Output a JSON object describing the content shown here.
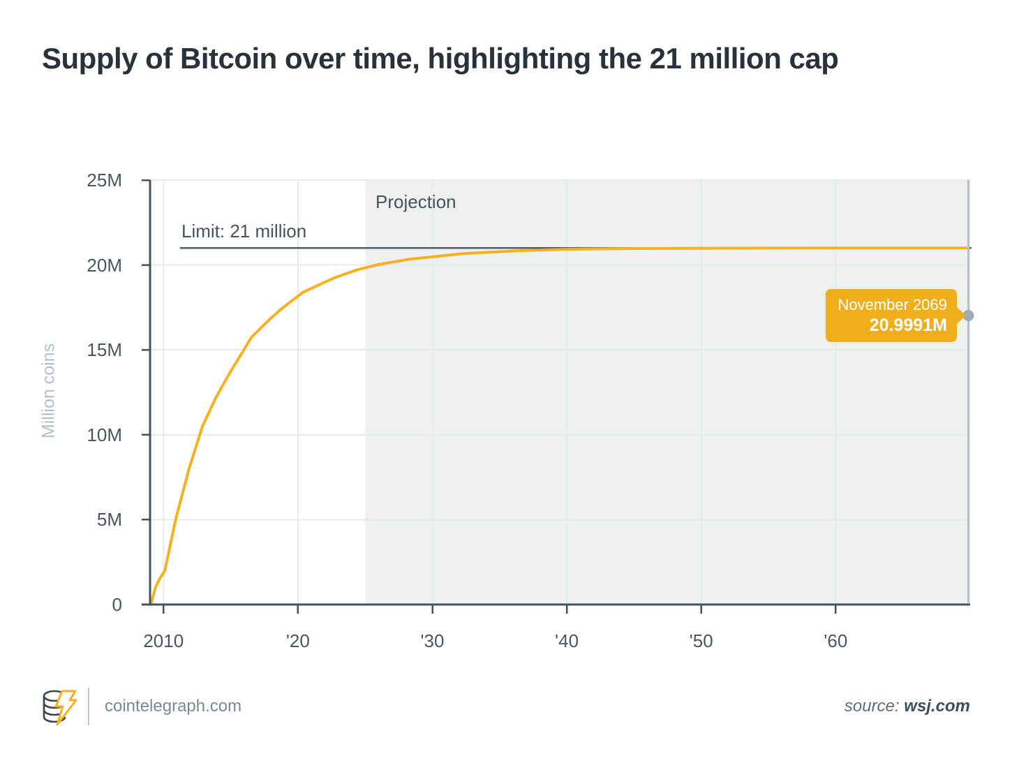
{
  "title": "Supply of Bitcoin over time, highlighting the 21 million cap",
  "chart_data": {
    "type": "line",
    "title": "Supply of Bitcoin over time, highlighting the 21 million cap",
    "xlabel": "",
    "ylabel": "Million coins",
    "xlim": [
      2009,
      2070
    ],
    "ylim": [
      0,
      25
    ],
    "grid": true,
    "y_ticks": [
      {
        "value": 0,
        "label": "0"
      },
      {
        "value": 5,
        "label": "5M"
      },
      {
        "value": 10,
        "label": "10M"
      },
      {
        "value": 15,
        "label": "15M"
      },
      {
        "value": 20,
        "label": "20M"
      },
      {
        "value": 25,
        "label": "25M"
      }
    ],
    "x_ticks": [
      {
        "value": 2010,
        "label": "2010"
      },
      {
        "value": 2020,
        "label": "'20"
      },
      {
        "value": 2030,
        "label": "'30"
      },
      {
        "value": 2040,
        "label": "'40"
      },
      {
        "value": 2050,
        "label": "'50"
      },
      {
        "value": 2060,
        "label": "'60"
      }
    ],
    "projection": {
      "label": "Projection",
      "start": 2025,
      "end": 2070
    },
    "limit_line": {
      "label": "Limit: 21 million",
      "value": 21
    },
    "series": [
      {
        "name": "Bitcoin supply (million coins)",
        "color": "#F5B120",
        "points": [
          [
            2009.05,
            0
          ],
          [
            2009.4,
            1.0
          ],
          [
            2009.7,
            1.5
          ],
          [
            2010.1,
            2.0
          ],
          [
            2010.9,
            5.0
          ],
          [
            2011.9,
            8.0
          ],
          [
            2012.9,
            10.5
          ],
          [
            2013.9,
            12.2
          ],
          [
            2014.9,
            13.6
          ],
          [
            2016.55,
            15.75
          ],
          [
            2017.9,
            16.8
          ],
          [
            2018.9,
            17.5
          ],
          [
            2020.35,
            18.38
          ],
          [
            2021.9,
            18.95
          ],
          [
            2022.9,
            19.3
          ],
          [
            2024.3,
            19.69
          ],
          [
            2026.0,
            20.03
          ],
          [
            2028.3,
            20.34
          ],
          [
            2030.0,
            20.48
          ],
          [
            2032.3,
            20.67
          ],
          [
            2036.3,
            20.84
          ],
          [
            2040.3,
            20.93
          ],
          [
            2044.3,
            20.965
          ],
          [
            2048.3,
            20.982
          ],
          [
            2052.3,
            20.991
          ],
          [
            2056.3,
            20.9955
          ],
          [
            2060.3,
            20.9977
          ],
          [
            2064.3,
            20.9988
          ],
          [
            2069.87,
            20.9991
          ]
        ]
      }
    ],
    "tooltip": {
      "title": "November 2069",
      "value": "20.9991M",
      "x": 2069.87
    }
  },
  "footer": {
    "brand": "cointelegraph.com",
    "source_prefix": "source:",
    "source": "wsj.com"
  },
  "colors": {
    "accent_yellow": "#F5B120",
    "tooltip_bg": "#F0AF1A",
    "title_ink": "#29323B",
    "axis": "#44525C",
    "tick_text": "#47565F",
    "muted_axis_title": "#B3C2CA",
    "projection_bg": "#EFF1F1",
    "gridline": "#E7EAEA",
    "limit_line": "#4E5D68",
    "crosshair": "#B5C1C9",
    "dot": "#9DABB4",
    "footer_text": "#7A8891",
    "source_text": "#3E4F5A"
  }
}
